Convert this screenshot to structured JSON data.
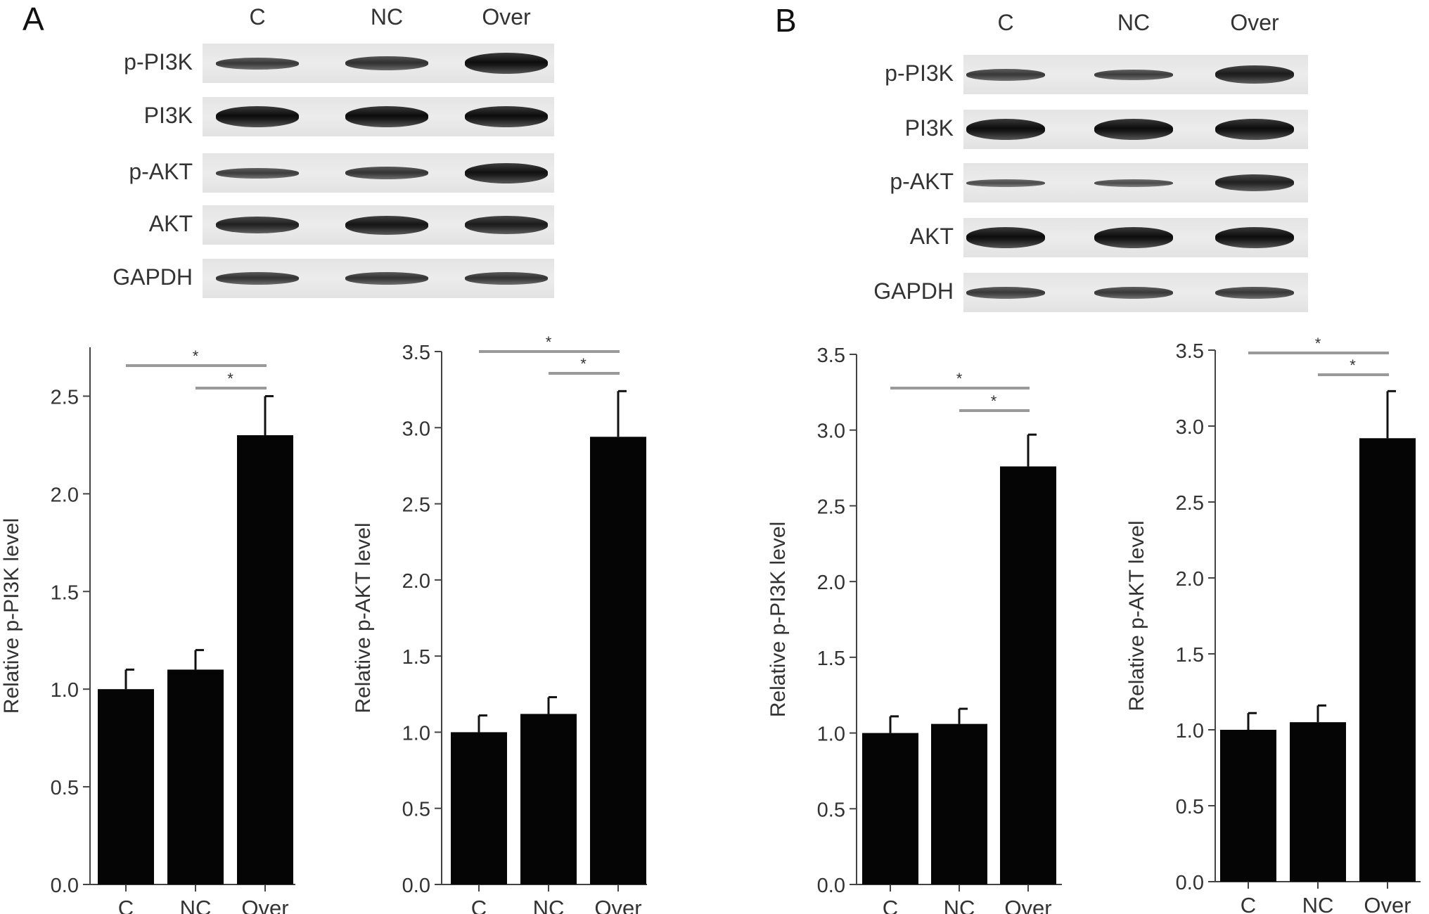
{
  "panels": [
    {
      "letter": "A",
      "blot": {
        "columns": [
          "C",
          "NC",
          "Over"
        ],
        "rows": [
          {
            "label": "p-PI3K",
            "intensity": [
              0.55,
              0.65,
              1.0
            ]
          },
          {
            "label": "PI3K",
            "intensity": [
              1.0,
              1.0,
              1.0
            ]
          },
          {
            "label": "p-AKT",
            "intensity": [
              0.5,
              0.6,
              0.95
            ]
          },
          {
            "label": "AKT",
            "intensity": [
              0.8,
              0.9,
              0.85
            ]
          },
          {
            "label": "GAPDH",
            "intensity": [
              0.6,
              0.6,
              0.6
            ]
          }
        ]
      }
    },
    {
      "letter": "B",
      "blot": {
        "columns": [
          "C",
          "NC",
          "Over"
        ],
        "rows": [
          {
            "label": "p-PI3K",
            "intensity": [
              0.55,
              0.5,
              0.85
            ]
          },
          {
            "label": "PI3K",
            "intensity": [
              1.0,
              1.0,
              1.0
            ]
          },
          {
            "label": "p-AKT",
            "intensity": [
              0.35,
              0.35,
              0.8
            ]
          },
          {
            "label": "AKT",
            "intensity": [
              1.0,
              1.0,
              1.0
            ]
          },
          {
            "label": "GAPDH",
            "intensity": [
              0.55,
              0.55,
              0.55
            ]
          }
        ]
      }
    }
  ],
  "chart_data": [
    {
      "type": "bar",
      "categories": [
        "C",
        "NC",
        "Over"
      ],
      "values": [
        1.0,
        1.1,
        2.3
      ],
      "errors": [
        0.1,
        0.1,
        0.2
      ],
      "ylabel": "Relative p-PI3K level",
      "ylim": [
        0,
        2.75
      ],
      "yticks": [
        "0.0",
        "0.5",
        "1.0",
        "1.5",
        "2.0",
        "2.5"
      ],
      "significance": [
        {
          "from": "C",
          "to": "Over",
          "label": "*"
        },
        {
          "from": "NC",
          "to": "Over",
          "label": "*"
        }
      ]
    },
    {
      "type": "bar",
      "categories": [
        "C",
        "NC",
        "Over"
      ],
      "values": [
        1.0,
        1.12,
        2.94
      ],
      "errors": [
        0.11,
        0.11,
        0.3
      ],
      "ylabel": "Relative p-AKT level",
      "ylim": [
        0,
        3.5
      ],
      "yticks": [
        "0.0",
        "0.5",
        "1.0",
        "1.5",
        "2.0",
        "2.5",
        "3.0",
        "3.5"
      ],
      "significance": [
        {
          "from": "C",
          "to": "Over",
          "label": "*"
        },
        {
          "from": "NC",
          "to": "Over",
          "label": "*"
        }
      ]
    },
    {
      "type": "bar",
      "categories": [
        "C",
        "NC",
        "Over"
      ],
      "values": [
        1.0,
        1.06,
        2.76
      ],
      "errors": [
        0.11,
        0.1,
        0.21
      ],
      "ylabel": "Relative p-PI3K level",
      "ylim": [
        0,
        3.5
      ],
      "yticks": [
        "0.0",
        "0.5",
        "1.0",
        "1.5",
        "2.0",
        "2.5",
        "3.0",
        "3.5"
      ],
      "significance": [
        {
          "from": "C",
          "to": "Over",
          "label": "*"
        },
        {
          "from": "NC",
          "to": "Over",
          "label": "*"
        }
      ]
    },
    {
      "type": "bar",
      "categories": [
        "C",
        "NC",
        "Over"
      ],
      "values": [
        1.0,
        1.05,
        2.92
      ],
      "errors": [
        0.11,
        0.11,
        0.31
      ],
      "ylabel": "Relative p-AKT level",
      "ylim": [
        0,
        3.5
      ],
      "yticks": [
        "0.0",
        "0.5",
        "1.0",
        "1.5",
        "2.0",
        "2.5",
        "3.0",
        "3.5"
      ],
      "significance": [
        {
          "from": "C",
          "to": "Over",
          "label": "*"
        },
        {
          "from": "NC",
          "to": "Over",
          "label": "*"
        }
      ]
    }
  ]
}
